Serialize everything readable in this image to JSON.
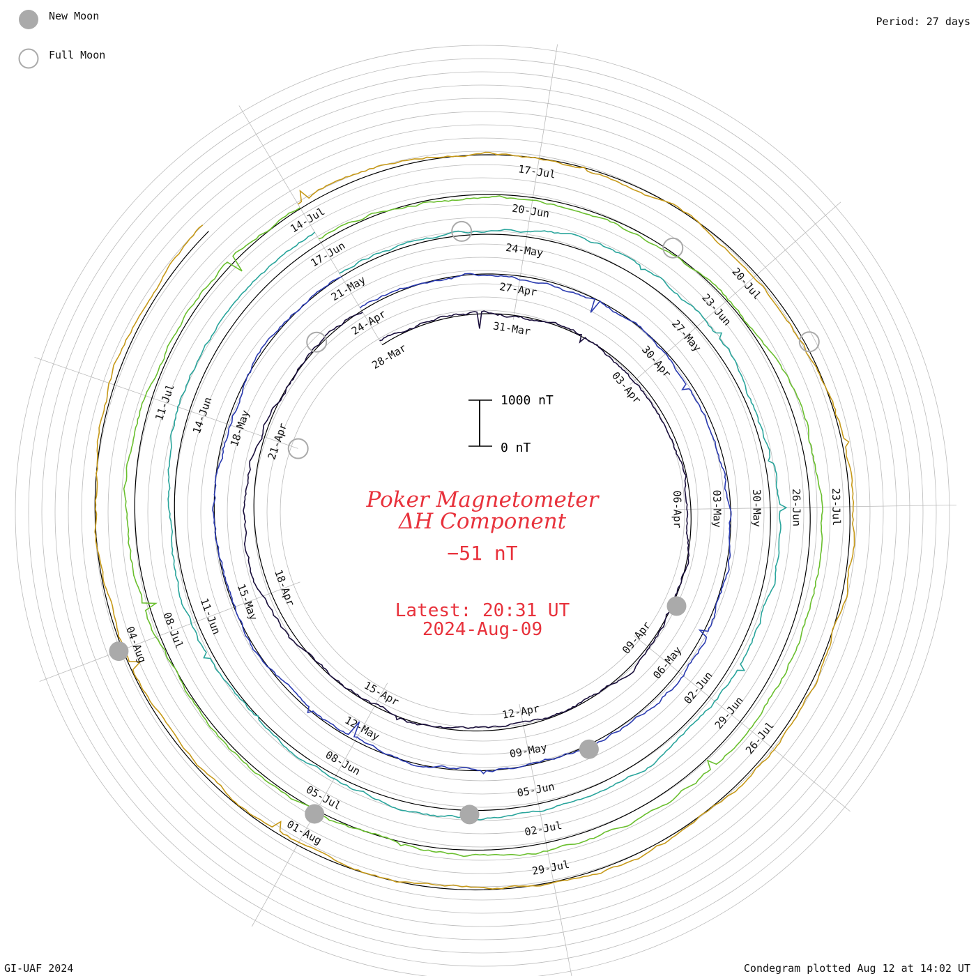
{
  "legend": {
    "new_moon": "New Moon",
    "full_moon": "Full Moon"
  },
  "period": "Period: 27 days",
  "footer": {
    "left": "GI-UAF 2024",
    "right": "Condegram plotted Aug 12 at 14:02 UT"
  },
  "colors": {
    "title": "#e8323c",
    "new_moon": "#aaaaaa",
    "full_moon": "#aaaaaa",
    "grid": "#bbbbbb"
  },
  "chart_data": {
    "type": "line",
    "title": "Poker Magnetometer",
    "subtitle": "ΔH Component",
    "current_value": "−51 nT",
    "latest_label": "Latest: 20:31 UT",
    "latest_date": "2024-Aug-09",
    "scale_bar": {
      "top_label": "1000 nT",
      "bottom_label": "0 nT"
    },
    "period_days": 27,
    "polar": true,
    "series": [
      {
        "name": "",
        "color": "#1a0f3c",
        "start": "2024-Mar-28",
        "end": "2024-Apr-24",
        "date_labels": [
          "28-Mar",
          "31-Mar",
          "03-Apr",
          "06-Apr",
          "09-Apr",
          "12-Apr",
          "15-Apr",
          "18-Apr",
          "21-Apr"
        ]
      },
      {
        "name": "",
        "color": "#2b3bb0",
        "start": "2024-Apr-24",
        "end": "2024-May-21",
        "date_labels": [
          "24-Apr",
          "27-Apr",
          "30-Apr",
          "03-May",
          "06-May",
          "09-May",
          "12-May",
          "15-May",
          "18-May"
        ]
      },
      {
        "name": "",
        "color": "#2aa59c",
        "start": "2024-May-21",
        "end": "2024-Jun-17",
        "date_labels": [
          "21-May",
          "24-May",
          "27-May",
          "30-May",
          "02-Jun",
          "05-Jun",
          "08-Jun",
          "11-Jun",
          "14-Jun"
        ]
      },
      {
        "name": "",
        "color": "#6abf2e",
        "start": "2024-Jun-17",
        "end": "2024-Jul-14",
        "date_labels": [
          "17-Jun",
          "20-Jun",
          "23-Jun",
          "26-Jun",
          "29-Jun",
          "02-Jul",
          "05-Jul",
          "08-Jul",
          "11-Jul"
        ]
      },
      {
        "name": "",
        "color": "#c79a1a",
        "start": "2024-Jul-14",
        "end": "2024-Aug-09",
        "date_labels": [
          "14-Jul",
          "17-Jul",
          "20-Jul",
          "23-Jul",
          "26-Jul",
          "29-Jul",
          "01-Aug",
          "04-Aug"
        ]
      }
    ],
    "new_moons": [
      "2024-Apr-08",
      "2024-May-08",
      "2024-Jun-06",
      "2024-Jul-05",
      "2024-Aug-04"
    ],
    "full_moons": [
      "2024-Mar-25",
      "2024-Apr-23",
      "2024-May-23",
      "2024-Jun-22",
      "2024-Jul-21"
    ],
    "grid": true
  }
}
